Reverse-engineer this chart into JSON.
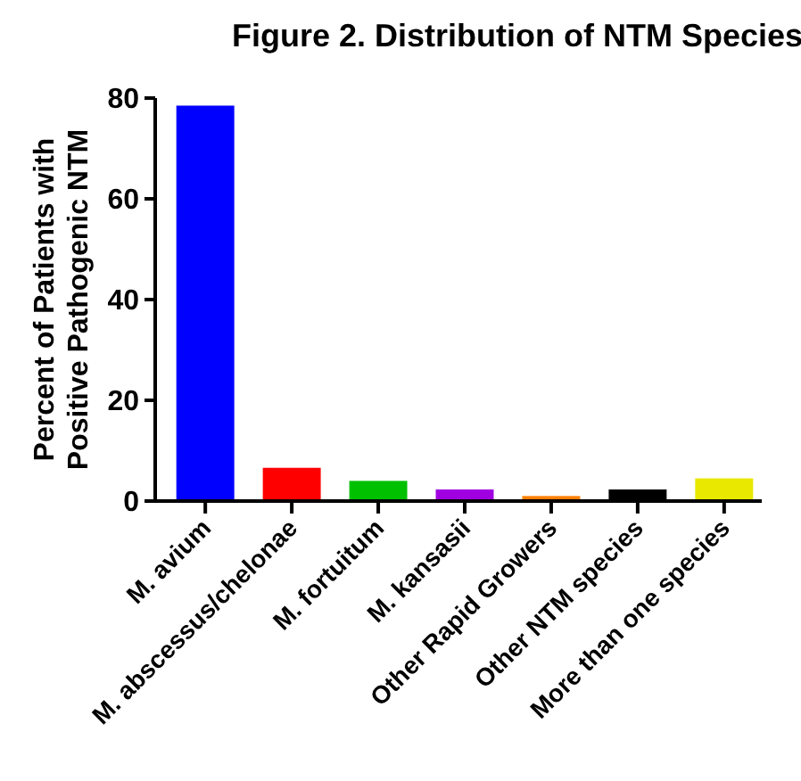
{
  "chart_data": {
    "type": "bar",
    "title": "Figure 2. Distribution of NTM Species",
    "ylabel": "Percent of Patients with\nPositive Pathogenic NTM",
    "categories": [
      "M. avium",
      "M. abscessus/chelonae",
      "M. fortuitum",
      "M. kansasii",
      "Other Rapid Growers",
      "Other NTM species",
      "More than one species"
    ],
    "values": [
      78.5,
      6.6,
      4.0,
      2.3,
      1.0,
      2.3,
      4.5
    ],
    "colors": [
      "#0000ff",
      "#ff0000",
      "#00c000",
      "#a000e0",
      "#ff8000",
      "#000000",
      "#e8e800"
    ],
    "ylim": [
      0,
      80
    ],
    "yticks": [
      0,
      20,
      40,
      60,
      80
    ],
    "grid": false
  }
}
